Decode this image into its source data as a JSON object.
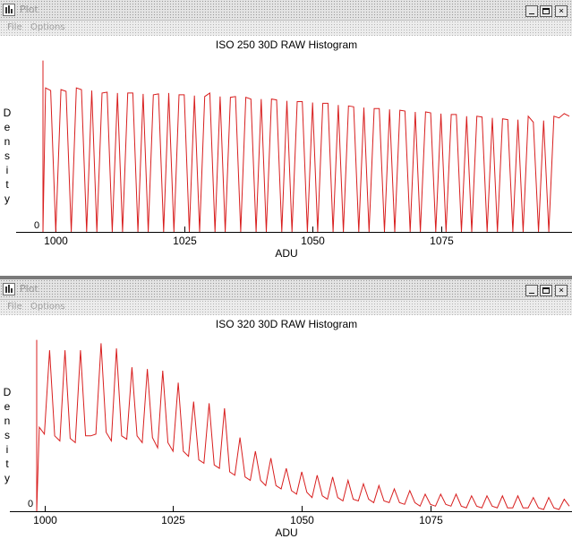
{
  "windows": [
    {
      "title_text": "Plot",
      "menu": [
        "File",
        "Options"
      ],
      "controls": {
        "minimize": "_",
        "maximize": "□",
        "close": "×"
      }
    },
    {
      "title_text": "Plot",
      "menu": [
        "File",
        "Options"
      ],
      "controls": {
        "minimize": "_",
        "maximize": "□",
        "close": "×"
      }
    }
  ],
  "colors": {
    "series": "#d81e1e",
    "axis": "#000000"
  },
  "chart_data": [
    {
      "type": "line",
      "title": "ISO 250 30D RAW Histogram",
      "xlabel": "ADU",
      "ylabel": "Density",
      "y_tick_label": "0",
      "x_ticks": [
        1000,
        1025,
        1050,
        1075
      ],
      "x_tick_labels": [
        "1000",
        "1025",
        "1050",
        "1075"
      ],
      "xlim": [
        997.5,
        1100
      ],
      "ylim": [
        0,
        210
      ],
      "grid": false,
      "spike": {
        "x": 997.5,
        "y": 200
      },
      "x": [
        998,
        999,
        1000,
        1001,
        1002,
        1003,
        1004,
        1005,
        1006,
        1007,
        1008,
        1009,
        1010,
        1011,
        1012,
        1013,
        1014,
        1015,
        1016,
        1017,
        1018,
        1019,
        1020,
        1021,
        1022,
        1023,
        1024,
        1025,
        1026,
        1027,
        1028,
        1029,
        1030,
        1031,
        1032,
        1033,
        1034,
        1035,
        1036,
        1037,
        1038,
        1039,
        1040,
        1041,
        1042,
        1043,
        1044,
        1045,
        1046,
        1047,
        1048,
        1049,
        1050,
        1051,
        1052,
        1053,
        1054,
        1055,
        1056,
        1057,
        1058,
        1059,
        1060,
        1061,
        1062,
        1063,
        1064,
        1065,
        1066,
        1067,
        1068,
        1069,
        1070,
        1071,
        1072,
        1073,
        1074,
        1075,
        1076,
        1077,
        1078,
        1079,
        1080,
        1081,
        1082,
        1083,
        1084,
        1085,
        1086,
        1087,
        1088,
        1089,
        1090,
        1091,
        1092,
        1093,
        1094,
        1095,
        1096,
        1097,
        1098,
        1099,
        1100
      ],
      "values": [
        168,
        165,
        0,
        166,
        164,
        0,
        168,
        166,
        0,
        165,
        0,
        162,
        163,
        0,
        162,
        0,
        162,
        162,
        0,
        161,
        0,
        160,
        161,
        0,
        162,
        0,
        160,
        160,
        0,
        159,
        0,
        158,
        162,
        0,
        158,
        0,
        157,
        158,
        0,
        157,
        155,
        0,
        155,
        0,
        155,
        154,
        0,
        153,
        0,
        152,
        152,
        0,
        151,
        0,
        150,
        150,
        0,
        148,
        0,
        147,
        146,
        0,
        145,
        0,
        144,
        144,
        0,
        143,
        0,
        142,
        141,
        0,
        140,
        0,
        140,
        139,
        0,
        138,
        0,
        137,
        137,
        0,
        135,
        0,
        135,
        134,
        0,
        133,
        0,
        132,
        131,
        0,
        131,
        0,
        135,
        128,
        0,
        130,
        0,
        135,
        133,
        138,
        135
      ]
    },
    {
      "type": "line",
      "title": "ISO 320 30D RAW Histogram",
      "xlabel": "ADU",
      "ylabel": "Density",
      "y_tick_label": "0",
      "x_ticks": [
        1000,
        1025,
        1050,
        1075
      ],
      "x_tick_labels": [
        "1000",
        "1025",
        "1050",
        "1075"
      ],
      "xlim": [
        998.5,
        1102
      ],
      "ylim": [
        0,
        210
      ],
      "grid": false,
      "spike": {
        "x": 998.5,
        "y": 200
      },
      "x": [
        999,
        1000,
        1001,
        1002,
        1003,
        1004,
        1005,
        1006,
        1007,
        1008,
        1009,
        1010,
        1011,
        1012,
        1013,
        1014,
        1015,
        1016,
        1017,
        1018,
        1019,
        1020,
        1021,
        1022,
        1023,
        1024,
        1025,
        1026,
        1027,
        1028,
        1029,
        1030,
        1031,
        1032,
        1033,
        1034,
        1035,
        1036,
        1037,
        1038,
        1039,
        1040,
        1041,
        1042,
        1043,
        1044,
        1045,
        1046,
        1047,
        1048,
        1049,
        1050,
        1051,
        1052,
        1053,
        1054,
        1055,
        1056,
        1057,
        1058,
        1059,
        1060,
        1061,
        1062,
        1063,
        1064,
        1065,
        1066,
        1067,
        1068,
        1069,
        1070,
        1071,
        1072,
        1073,
        1074,
        1075,
        1076,
        1077,
        1078,
        1079,
        1080,
        1081,
        1082,
        1083,
        1084,
        1085,
        1086,
        1087,
        1088,
        1089,
        1090,
        1091,
        1092,
        1093,
        1094,
        1095,
        1096,
        1097,
        1098,
        1099,
        1100,
        1101,
        1102
      ],
      "values": [
        98,
        90,
        188,
        88,
        82,
        188,
        85,
        80,
        188,
        88,
        88,
        90,
        196,
        92,
        82,
        190,
        88,
        84,
        168,
        88,
        80,
        166,
        86,
        74,
        164,
        80,
        70,
        150,
        70,
        64,
        128,
        60,
        56,
        126,
        54,
        50,
        120,
        46,
        42,
        86,
        40,
        36,
        70,
        36,
        30,
        62,
        30,
        26,
        50,
        24,
        20,
        46,
        22,
        16,
        42,
        18,
        14,
        40,
        16,
        12,
        36,
        14,
        12,
        32,
        14,
        10,
        30,
        12,
        10,
        26,
        10,
        8,
        24,
        10,
        6,
        20,
        8,
        6,
        20,
        8,
        6,
        20,
        6,
        4,
        18,
        6,
        4,
        18,
        6,
        4,
        18,
        4,
        4,
        18,
        4,
        4,
        16,
        4,
        2,
        16,
        4,
        2,
        14,
        6
      ]
    }
  ]
}
